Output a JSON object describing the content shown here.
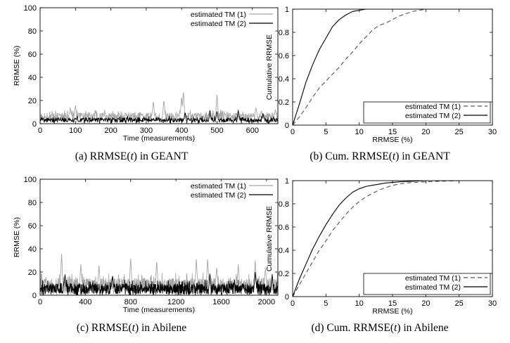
{
  "captions": [
    {
      "prefix": "(a) RRMSE(",
      "var": "t",
      "suffix": ") in GEANT"
    },
    {
      "prefix": "(b) Cum. RRMSE(",
      "var": "t",
      "suffix": ") in GEANT"
    },
    {
      "prefix": "(c) RRMSE(",
      "var": "t",
      "suffix": ") in Abilene"
    },
    {
      "prefix": "(d) Cum. RRMSE(",
      "var": "t",
      "suffix": ") in Abilene"
    }
  ],
  "chart_data": [
    {
      "id": "a",
      "type": "line",
      "title": "",
      "xlabel": "Time (measurements)",
      "ylabel": "RRMSE (%)",
      "xlim": [
        0,
        672
      ],
      "ylim": [
        0,
        100
      ],
      "xticks": [
        0,
        100,
        200,
        300,
        400,
        500,
        600
      ],
      "yticks": [
        0,
        20,
        40,
        60,
        80,
        100
      ],
      "legend_position": "top-right",
      "legend_box": false,
      "series": [
        {
          "name": "estimated TM (1)",
          "color": "#a6a6a6",
          "style": "solid",
          "n": 672,
          "base": 6,
          "spread": 6,
          "peaks": [
            [
              85,
              14
            ],
            [
              100,
              16
            ],
            [
              320,
              20
            ],
            [
              350,
              21
            ],
            [
              400,
              24
            ],
            [
              405,
              29
            ],
            [
              500,
              26
            ],
            [
              610,
              14
            ],
            [
              665,
              12
            ]
          ]
        },
        {
          "name": "estimated TM (2)",
          "color": "#000000",
          "style": "solid",
          "n": 672,
          "base": 3,
          "spread": 4,
          "peaks": [
            [
              410,
              10
            ],
            [
              480,
              12
            ],
            [
              500,
              11
            ],
            [
              560,
              12
            ],
            [
              630,
              9
            ]
          ]
        }
      ]
    },
    {
      "id": "b",
      "type": "line",
      "title": "",
      "xlabel": "RRMSE (%)",
      "ylabel": "Cumulative RRMSE",
      "xlim": [
        0,
        30
      ],
      "ylim": [
        0,
        1
      ],
      "xticks": [
        0,
        5,
        10,
        15,
        20,
        25,
        30
      ],
      "yticks": [
        0,
        0.2,
        0.4,
        0.6,
        0.8,
        1
      ],
      "legend_position": "bottom-right",
      "legend_box": true,
      "series": [
        {
          "name": "estimated TM (1)",
          "color": "#555555",
          "style": "dashed",
          "x": [
            0,
            1,
            2,
            3,
            4,
            5,
            6,
            7,
            8,
            9,
            10,
            11,
            12,
            13,
            14,
            15,
            16,
            17,
            18,
            19,
            20,
            22,
            25,
            30
          ],
          "y": [
            0,
            0.07,
            0.15,
            0.24,
            0.32,
            0.38,
            0.44,
            0.5,
            0.57,
            0.63,
            0.7,
            0.76,
            0.82,
            0.86,
            0.88,
            0.91,
            0.94,
            0.96,
            0.98,
            0.99,
            1,
            1,
            1,
            1
          ]
        },
        {
          "name": "estimated TM (2)",
          "color": "#000000",
          "style": "solid",
          "x": [
            0,
            1,
            2,
            3,
            4,
            5,
            6,
            7,
            8,
            9,
            10,
            11,
            12,
            15,
            20,
            25,
            30
          ],
          "y": [
            0,
            0.18,
            0.37,
            0.52,
            0.65,
            0.75,
            0.85,
            0.91,
            0.95,
            0.98,
            0.99,
            1,
            1,
            1,
            1,
            1,
            1
          ]
        }
      ]
    },
    {
      "id": "c",
      "type": "line",
      "title": "",
      "xlabel": "Time (measurements)",
      "ylabel": "RRMSE (%)",
      "xlim": [
        0,
        2100
      ],
      "ylim": [
        0,
        100
      ],
      "xticks": [
        0,
        400,
        800,
        1200,
        1600,
        2000
      ],
      "yticks": [
        0,
        20,
        40,
        60,
        80,
        100
      ],
      "legend_position": "top-right",
      "legend_box": false,
      "series": [
        {
          "name": "estimated TM (1)",
          "color": "#a6a6a6",
          "style": "solid",
          "n": 1050,
          "base": 8,
          "spread": 12,
          "peaks": [
            [
              190,
              36
            ],
            [
              360,
              27
            ],
            [
              520,
              26
            ],
            [
              800,
              33
            ],
            [
              1030,
              30
            ],
            [
              1380,
              32
            ],
            [
              1480,
              32
            ],
            [
              1560,
              24
            ],
            [
              1750,
              27
            ],
            [
              1900,
              30
            ],
            [
              1990,
              24
            ]
          ]
        },
        {
          "name": "estimated TM (2)",
          "color": "#000000",
          "style": "solid",
          "n": 1050,
          "base": 5,
          "spread": 9,
          "peaks": [
            [
              220,
              18
            ],
            [
              640,
              17
            ],
            [
              1500,
              19
            ],
            [
              1900,
              20
            ],
            [
              2050,
              18
            ]
          ]
        }
      ]
    },
    {
      "id": "d",
      "type": "line",
      "title": "",
      "xlabel": "RRMSE (%)",
      "ylabel": "Cumulative RRMSE",
      "xlim": [
        0,
        30
      ],
      "ylim": [
        0,
        1
      ],
      "xticks": [
        0,
        5,
        10,
        15,
        20,
        25,
        30
      ],
      "yticks": [
        0,
        0.2,
        0.4,
        0.6,
        0.8,
        1
      ],
      "legend_position": "bottom-right",
      "legend_box": true,
      "series": [
        {
          "name": "estimated TM (1)",
          "color": "#555555",
          "style": "dashed",
          "x": [
            0,
            1,
            2,
            3,
            4,
            5,
            6,
            7,
            8,
            9,
            10,
            11,
            12,
            13,
            14,
            15,
            17,
            20,
            25,
            30
          ],
          "y": [
            0,
            0.1,
            0.2,
            0.3,
            0.4,
            0.48,
            0.57,
            0.64,
            0.71,
            0.77,
            0.82,
            0.86,
            0.89,
            0.92,
            0.94,
            0.96,
            0.98,
            0.99,
            1,
            1
          ]
        },
        {
          "name": "estimated TM (2)",
          "color": "#000000",
          "style": "solid",
          "x": [
            0,
            1,
            2,
            3,
            4,
            5,
            6,
            7,
            8,
            9,
            10,
            11,
            12,
            14,
            16,
            20,
            25,
            30
          ],
          "y": [
            0,
            0.15,
            0.28,
            0.41,
            0.52,
            0.62,
            0.71,
            0.79,
            0.85,
            0.9,
            0.93,
            0.95,
            0.96,
            0.98,
            0.99,
            1,
            1,
            1
          ]
        }
      ]
    }
  ]
}
